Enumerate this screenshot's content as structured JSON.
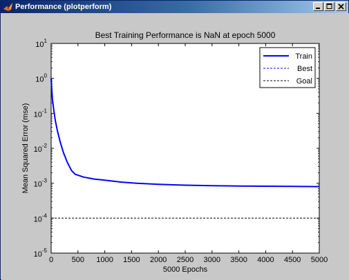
{
  "window": {
    "title": "Performance (plotperform)",
    "controls": [
      "minimize-icon",
      "maximize-icon",
      "close-icon"
    ]
  },
  "colors": {
    "titlebar_start": "#0a246a",
    "titlebar_end": "#a6caf0",
    "figure_bg": "#c8c8c8",
    "axes_bg": "#ffffff",
    "train": "#0000ff",
    "best": "#0000ff",
    "goal": "#000000"
  },
  "chart_data": {
    "type": "line",
    "title": "Best Training Performance is NaN at epoch 5000",
    "xlabel": "5000 Epochs",
    "ylabel": "Mean Squared Error  (mse)",
    "xscale": "linear",
    "yscale": "log",
    "xlim": [
      0,
      5000
    ],
    "ylim": [
      1e-05,
      10
    ],
    "xticks": [
      0,
      500,
      1000,
      1500,
      2000,
      2500,
      3000,
      3500,
      4000,
      4500,
      5000
    ],
    "yticks": [
      {
        "value": 10,
        "base": "10",
        "exp": "1"
      },
      {
        "value": 1,
        "base": "10",
        "exp": "0"
      },
      {
        "value": 0.1,
        "base": "10",
        "exp": "-1"
      },
      {
        "value": 0.01,
        "base": "10",
        "exp": "-2"
      },
      {
        "value": 0.001,
        "base": "10",
        "exp": "-3"
      },
      {
        "value": 0.0001,
        "base": "10",
        "exp": "-4"
      },
      {
        "value": 1e-05,
        "base": "10",
        "exp": "-5"
      }
    ],
    "grid": false,
    "legend": {
      "position": "top-right",
      "entries": [
        "Train",
        "Best",
        "Goal"
      ]
    },
    "series": [
      {
        "name": "Train",
        "style": "solid",
        "x": [
          0,
          10,
          25,
          50,
          80,
          120,
          170,
          230,
          300,
          380,
          450,
          600,
          800,
          1000,
          1300,
          1600,
          2000,
          2500,
          3000,
          3500,
          4000,
          4500,
          5000
        ],
        "y": [
          1.0,
          0.5,
          0.25,
          0.12,
          0.06,
          0.03,
          0.015,
          0.0075,
          0.004,
          0.0023,
          0.0018,
          0.0015,
          0.00132,
          0.00122,
          0.00108,
          0.001,
          0.00093,
          0.00088,
          0.00085,
          0.00083,
          0.00082,
          0.00081,
          0.0008
        ]
      },
      {
        "name": "Best",
        "style": "dashed",
        "x": [],
        "y": []
      },
      {
        "name": "Goal",
        "style": "dashed",
        "x": [
          0,
          5000
        ],
        "y": [
          0.0001,
          0.0001
        ]
      }
    ]
  }
}
